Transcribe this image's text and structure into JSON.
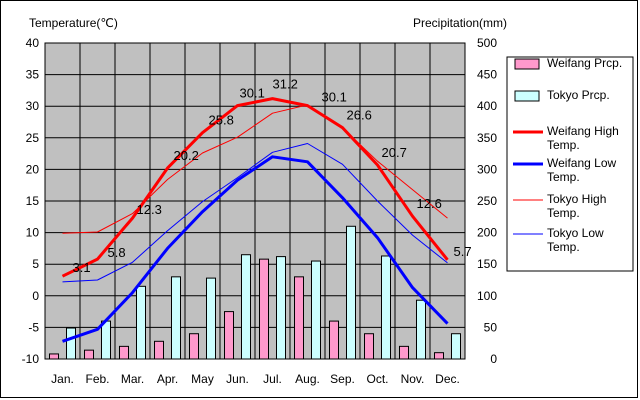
{
  "chart_data": {
    "type": "bar+line",
    "categories": [
      "Jan.",
      "Feb.",
      "Mar.",
      "Apr.",
      "May",
      "Jun.",
      "Jul.",
      "Aug.",
      "Sep.",
      "Oct.",
      "Nov.",
      "Dec."
    ],
    "left_axis": {
      "label": "Temperature(℃)",
      "min": -10,
      "max": 40,
      "step": 5
    },
    "right_axis": {
      "label": "Precipitation(mm)",
      "min": 0,
      "max": 500,
      "step": 50
    },
    "grid": true,
    "legend_position": "right",
    "bar_series": [
      {
        "name": "Weifang Prcp.",
        "color": "#ff99cc",
        "axis": "right",
        "values": [
          8,
          14,
          20,
          28,
          40,
          75,
          158,
          130,
          60,
          40,
          20,
          10
        ]
      },
      {
        "name": "Tokyo Prcp.",
        "color": "#ccffff",
        "axis": "right",
        "values": [
          49,
          60,
          115,
          130,
          128,
          165,
          162,
          155,
          210,
          163,
          93,
          40
        ]
      }
    ],
    "line_series": [
      {
        "name": "Weifang High Temp.",
        "color": "#ff0000",
        "width": 3,
        "axis": "left",
        "values": [
          3.1,
          5.8,
          12.3,
          20.2,
          25.8,
          30.1,
          31.2,
          30.1,
          26.6,
          20.7,
          12.6,
          5.7
        ],
        "labels": [
          "3.1",
          "5.8",
          "12.3",
          "20.2",
          "25.8",
          "30.1",
          "31.2",
          "30.1",
          "26.6",
          "20.7",
          "12.6",
          "5.7"
        ]
      },
      {
        "name": "Weifang Low Temp.",
        "color": "#0000ff",
        "width": 3,
        "axis": "left",
        "values": [
          -7.2,
          -5.3,
          0.5,
          7.5,
          13.3,
          18.3,
          22.0,
          21.2,
          15.5,
          9.2,
          1.3,
          -4.4
        ]
      },
      {
        "name": "Tokyo High Temp.",
        "color": "#ff0000",
        "width": 1,
        "axis": "left",
        "values": [
          9.9,
          10.1,
          13.0,
          18.4,
          22.6,
          25.1,
          28.9,
          30.2,
          26.6,
          21.3,
          16.8,
          12.3
        ]
      },
      {
        "name": "Tokyo Low Temp.",
        "color": "#0000ff",
        "width": 1,
        "axis": "left",
        "values": [
          2.2,
          2.5,
          5.3,
          10.3,
          14.9,
          18.7,
          22.7,
          24.1,
          20.8,
          15.0,
          9.6,
          5.2
        ]
      }
    ]
  }
}
